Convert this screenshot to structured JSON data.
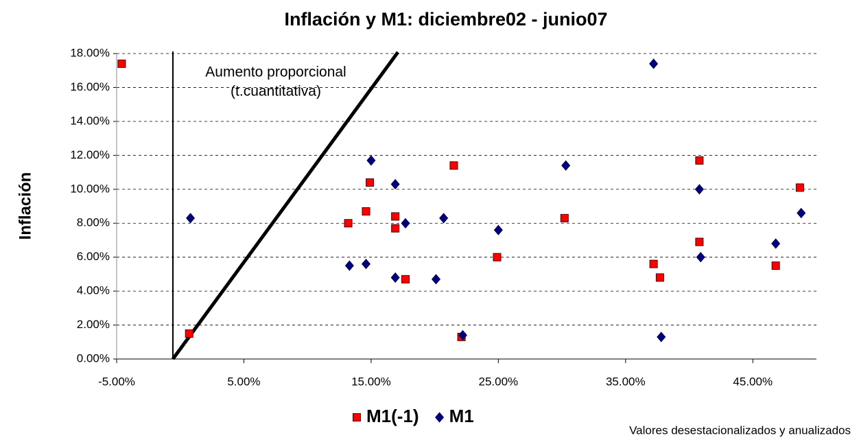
{
  "chart_data": {
    "type": "scatter",
    "title": "Inflación y M1: diciembre02 - junio07",
    "y_label": "Inflación",
    "annotation": [
      "Aumento proporcional",
      "(t.cuantitativa)"
    ],
    "note": "Valores desestacionalizados y anualizados",
    "xlim": [
      -5,
      50
    ],
    "ylim": [
      0,
      18
    ],
    "xticks": [
      {
        "value": -5,
        "label": "-5.00%"
      },
      {
        "value": 5,
        "label": "5.00%"
      },
      {
        "value": 15,
        "label": "15.00%"
      },
      {
        "value": 25,
        "label": "25.00%"
      },
      {
        "value": 35,
        "label": "35.00%"
      },
      {
        "value": 45,
        "label": "45.00%"
      }
    ],
    "yticks": [
      {
        "value": 0,
        "label": "0.00%"
      },
      {
        "value": 2,
        "label": "2.00%"
      },
      {
        "value": 4,
        "label": "4.00%"
      },
      {
        "value": 6,
        "label": "6.00%"
      },
      {
        "value": 8,
        "label": "8.00%"
      },
      {
        "value": 10,
        "label": "10.00%"
      },
      {
        "value": 12,
        "label": "12.00%"
      },
      {
        "value": 14,
        "label": "14.00%"
      },
      {
        "value": 16,
        "label": "16.00%"
      },
      {
        "value": 18,
        "label": "18.00%"
      }
    ],
    "grid": true,
    "series": [
      {
        "name": "M1(-1)",
        "color": "#ff0000",
        "marker": "square",
        "x": [
          -4.6,
          0.7,
          13.2,
          14.6,
          14.9,
          16.9,
          16.9,
          17.7,
          21.5,
          22.1,
          24.9,
          30.2,
          37.2,
          37.7,
          40.8,
          40.8,
          46.8,
          48.7
        ],
        "values": [
          17.4,
          1.5,
          8.0,
          8.7,
          10.4,
          8.4,
          7.7,
          4.7,
          11.4,
          1.3,
          6.0,
          8.3,
          5.6,
          4.8,
          11.7,
          6.9,
          5.5,
          10.1
        ]
      },
      {
        "name": "M1",
        "color": "#000080",
        "marker": "diamond",
        "x": [
          0.8,
          13.3,
          14.6,
          15.0,
          16.9,
          16.9,
          17.7,
          20.1,
          20.7,
          22.2,
          25.0,
          30.3,
          37.2,
          37.8,
          40.8,
          40.9,
          46.8,
          48.8
        ],
        "values": [
          8.3,
          5.5,
          5.6,
          11.7,
          10.3,
          4.8,
          8.0,
          4.7,
          8.3,
          1.4,
          7.6,
          11.4,
          17.4,
          1.3,
          10.0,
          6.0,
          6.8,
          8.6
        ]
      }
    ]
  }
}
